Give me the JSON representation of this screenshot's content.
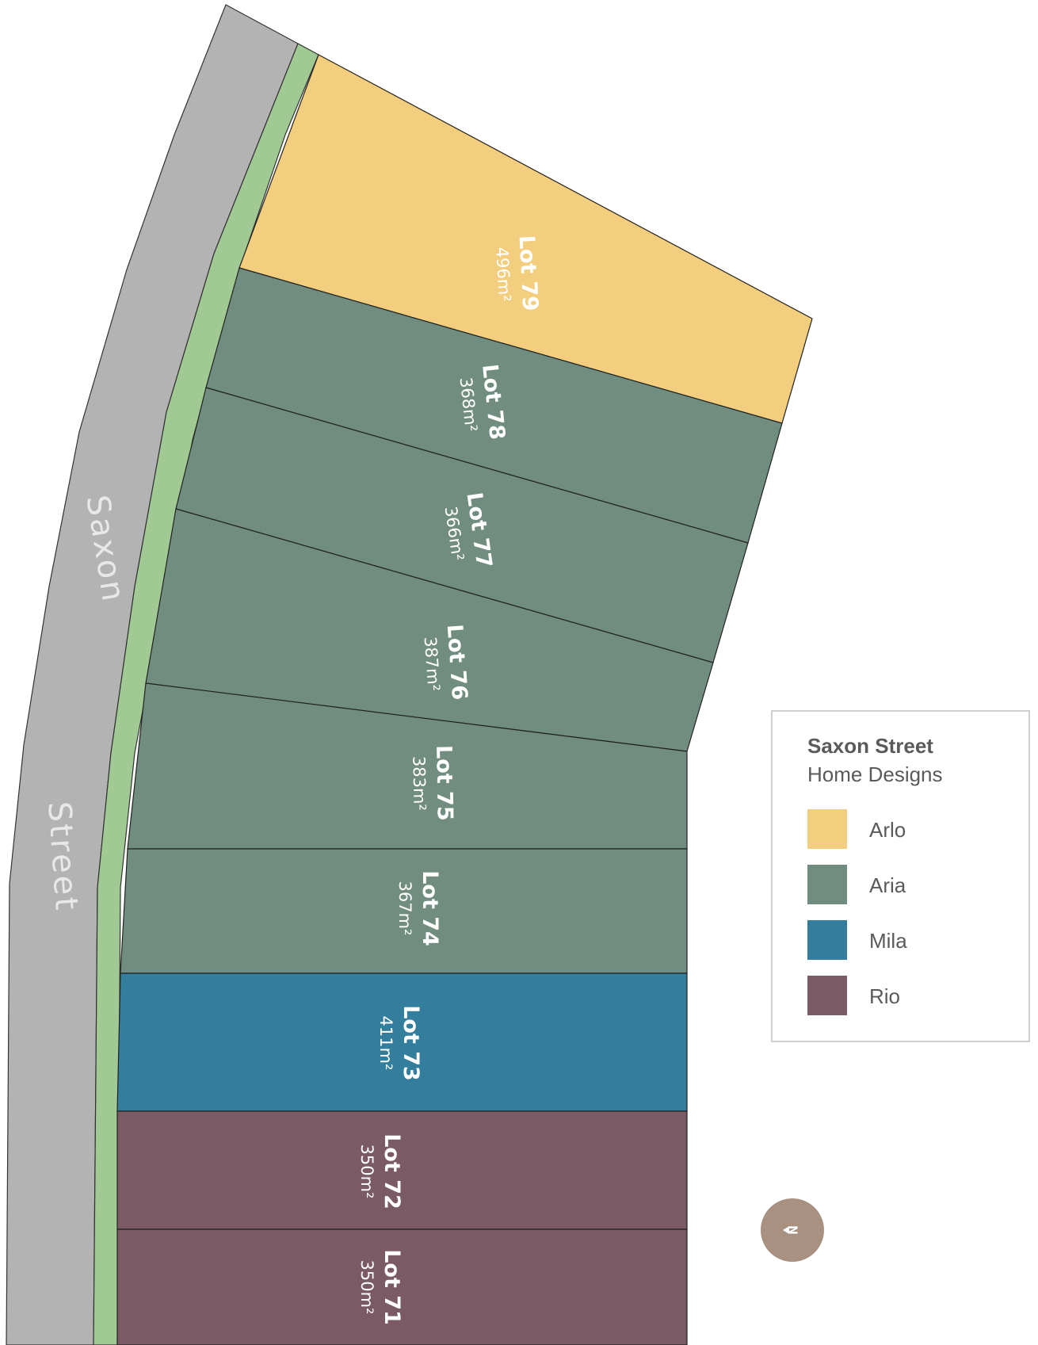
{
  "map": {
    "street_words": [
      "Saxon",
      "Street"
    ],
    "north_label": "N",
    "colors": {
      "road": "#b3b3b3",
      "verge": "#a1c993",
      "Arlo": "#f2ce7e",
      "Aria": "#718d80",
      "Mila": "#337e9c",
      "Rio": "#7a5a65",
      "north_badge": "#a89180"
    },
    "lots": [
      {
        "name": "Lot 79",
        "area": "496m²",
        "design": "Arlo"
      },
      {
        "name": "Lot 78",
        "area": "368m²",
        "design": "Aria"
      },
      {
        "name": "Lot 77",
        "area": "366m²",
        "design": "Aria"
      },
      {
        "name": "Lot 76",
        "area": "387m²",
        "design": "Aria"
      },
      {
        "name": "Lot 75",
        "area": "383m²",
        "design": "Aria"
      },
      {
        "name": "Lot 74",
        "area": "367m²",
        "design": "Aria"
      },
      {
        "name": "Lot 73",
        "area": "411m²",
        "design": "Mila"
      },
      {
        "name": "Lot 72",
        "area": "350m²",
        "design": "Rio"
      },
      {
        "name": "Lot 71",
        "area": "350m²",
        "design": "Rio"
      }
    ]
  },
  "legend": {
    "title": "Saxon Street",
    "subtitle": "Home Designs",
    "items": [
      {
        "label": "Arlo",
        "color": "#f2ce7e"
      },
      {
        "label": "Aria",
        "color": "#718d80"
      },
      {
        "label": "Mila",
        "color": "#337e9c"
      },
      {
        "label": "Rio",
        "color": "#7a5a65"
      }
    ]
  }
}
